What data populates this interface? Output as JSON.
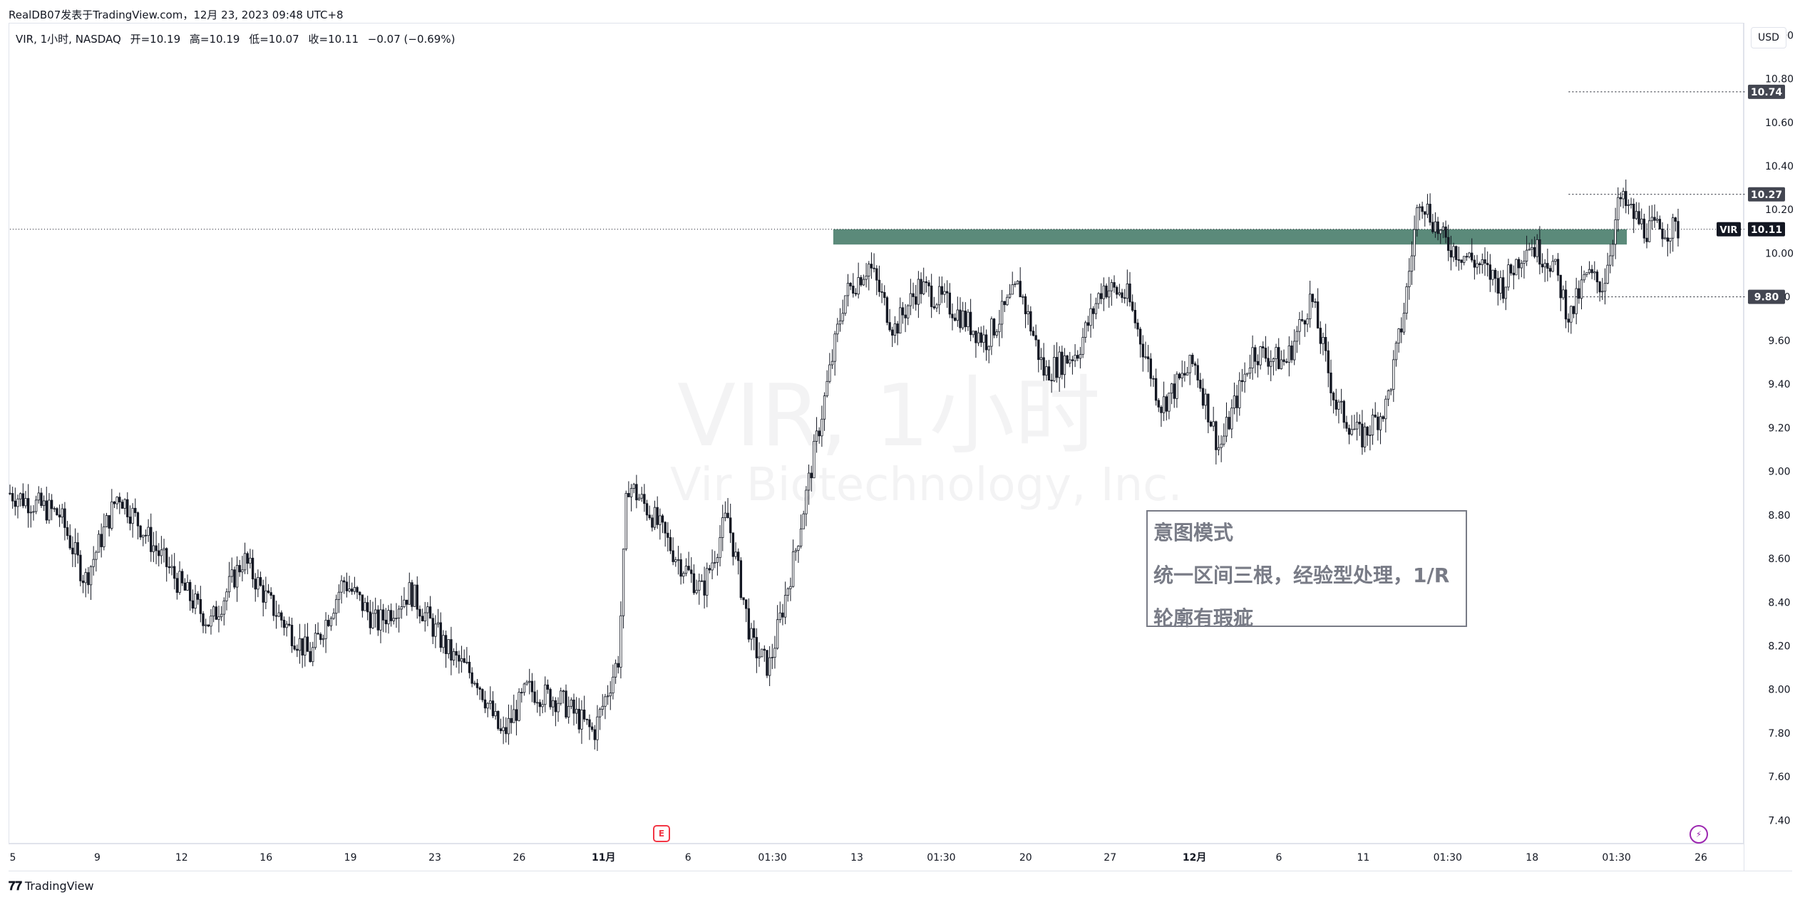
{
  "header": {
    "credit": "RealDB07发表于TradingView.com，12月 23, 2023 09:48 UTC+8"
  },
  "legend": {
    "symbol": "VIR, 1小时, NASDAQ",
    "open": "开=10.19",
    "high": "高=10.19",
    "low": "低=10.07",
    "close": "收=10.11",
    "change": "−0.07 (−0.69%)"
  },
  "currency": "USD",
  "watermark": {
    "title": "VIR, 1小时",
    "company": "Vir Biotechnology, Inc."
  },
  "annotation": {
    "line1": "意图模式",
    "line2": "统一区间三根，经验型处理，1/R",
    "line3": "轮廓有瑕疵"
  },
  "footer": {
    "logo_text": "TradingView"
  },
  "markers": {
    "earnings": "E",
    "dividend": "⚡"
  },
  "colors": {
    "candle": "#131722",
    "zone": "#5b8a7a",
    "price_label": "#434651",
    "last_price_label": "#131722"
  },
  "chart_data": {
    "type": "candlestick",
    "symbol": "VIR",
    "interval": "1小时",
    "exchange": "NASDAQ",
    "ylim": [
      7.3,
      11.05
    ],
    "y_ticks": [
      "11.00",
      "10.80",
      "10.60",
      "10.40",
      "10.20",
      "10.00",
      "9.80",
      "9.60",
      "9.40",
      "9.20",
      "9.00",
      "8.80",
      "8.60",
      "8.40",
      "8.20",
      "8.00",
      "7.80",
      "7.60",
      "7.40"
    ],
    "x_ticks": [
      "5",
      "9",
      "12",
      "16",
      "19",
      "23",
      "26",
      "11月",
      "6",
      "01:30",
      "13",
      "01:30",
      "20",
      "27",
      "12月",
      "6",
      "11",
      "01:30",
      "18",
      "01:30",
      "26"
    ],
    "price_levels": [
      {
        "label": "10.74",
        "value": 10.74
      },
      {
        "label": "10.27",
        "value": 10.27
      },
      {
        "label": "9.80",
        "value": 9.8
      }
    ],
    "last_price": {
      "symbol": "VIR",
      "label": "10.11",
      "value": 10.11
    },
    "zone": {
      "low": 10.04,
      "high": 10.11
    },
    "points": [
      {
        "t": 0,
        "close": 8.9
      },
      {
        "t": 0.03,
        "close": 8.8
      },
      {
        "t": 0.045,
        "close": 8.5
      },
      {
        "t": 0.065,
        "close": 8.9
      },
      {
        "t": 0.1,
        "close": 8.5
      },
      {
        "t": 0.12,
        "close": 8.3
      },
      {
        "t": 0.14,
        "close": 8.6
      },
      {
        "t": 0.155,
        "close": 8.4
      },
      {
        "t": 0.18,
        "close": 8.15
      },
      {
        "t": 0.2,
        "close": 8.5
      },
      {
        "t": 0.22,
        "close": 8.3
      },
      {
        "t": 0.24,
        "close": 8.45
      },
      {
        "t": 0.265,
        "close": 8.15
      },
      {
        "t": 0.28,
        "close": 8.05
      },
      {
        "t": 0.295,
        "close": 7.78
      },
      {
        "t": 0.31,
        "close": 8.0
      },
      {
        "t": 0.33,
        "close": 7.95
      },
      {
        "t": 0.35,
        "close": 7.8
      },
      {
        "t": 0.365,
        "close": 8.15
      },
      {
        "t": 0.37,
        "close": 8.95
      },
      {
        "t": 0.385,
        "close": 8.8
      },
      {
        "t": 0.4,
        "close": 8.6
      },
      {
        "t": 0.415,
        "close": 8.45
      },
      {
        "t": 0.43,
        "close": 8.8
      },
      {
        "t": 0.445,
        "close": 8.2
      },
      {
        "t": 0.455,
        "close": 8.1
      },
      {
        "t": 0.47,
        "close": 8.6
      },
      {
        "t": 0.485,
        "close": 9.2
      },
      {
        "t": 0.5,
        "close": 9.8
      },
      {
        "t": 0.515,
        "close": 9.95
      },
      {
        "t": 0.53,
        "close": 9.65
      },
      {
        "t": 0.545,
        "close": 9.85
      },
      {
        "t": 0.565,
        "close": 9.75
      },
      {
        "t": 0.585,
        "close": 9.6
      },
      {
        "t": 0.605,
        "close": 9.85
      },
      {
        "t": 0.62,
        "close": 9.45
      },
      {
        "t": 0.64,
        "close": 9.55
      },
      {
        "t": 0.655,
        "close": 9.85
      },
      {
        "t": 0.67,
        "close": 9.8
      },
      {
        "t": 0.69,
        "close": 9.3
      },
      {
        "t": 0.71,
        "close": 9.5
      },
      {
        "t": 0.725,
        "close": 9.1
      },
      {
        "t": 0.745,
        "close": 9.55
      },
      {
        "t": 0.765,
        "close": 9.5
      },
      {
        "t": 0.78,
        "close": 9.8
      },
      {
        "t": 0.795,
        "close": 9.3
      },
      {
        "t": 0.81,
        "close": 9.15
      },
      {
        "t": 0.825,
        "close": 9.3
      },
      {
        "t": 0.835,
        "close": 9.7
      },
      {
        "t": 0.845,
        "close": 10.27
      },
      {
        "t": 0.86,
        "close": 10.05
      },
      {
        "t": 0.88,
        "close": 9.95
      },
      {
        "t": 0.895,
        "close": 9.85
      },
      {
        "t": 0.91,
        "close": 10.05
      },
      {
        "t": 0.925,
        "close": 9.95
      },
      {
        "t": 0.935,
        "close": 9.7
      },
      {
        "t": 0.945,
        "close": 9.9
      },
      {
        "t": 0.955,
        "close": 9.85
      },
      {
        "t": 0.965,
        "close": 10.25
      },
      {
        "t": 0.98,
        "close": 10.11
      }
    ]
  }
}
